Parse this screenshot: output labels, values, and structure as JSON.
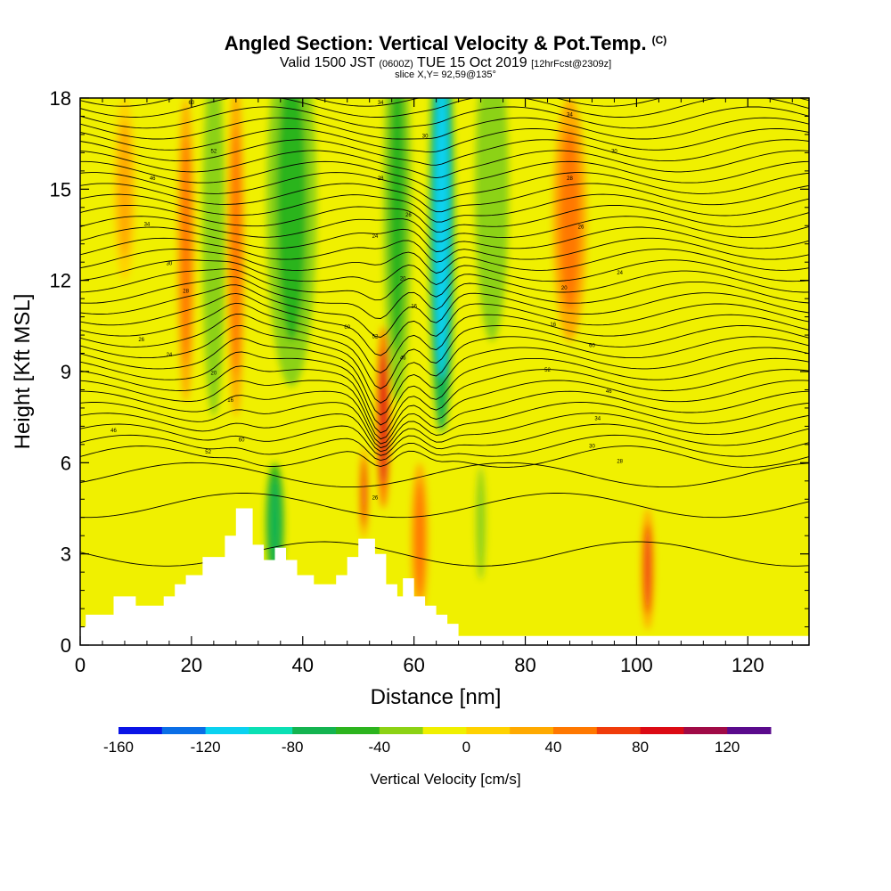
{
  "title": {
    "main": "Angled Section: Vertical Velocity & Pot.Temp.",
    "main_tag": "(C)",
    "valid_prefix": "Valid 1500 JST",
    "valid_utc": "(0600Z)",
    "valid_date": "TUE 15 Oct 2019",
    "forecast": "[12hrFcst@2309z]",
    "slice": "slice X,Y= 92,59@135°"
  },
  "chart_data": {
    "type": "heatmap",
    "xlabel": "Distance [nm]",
    "ylabel": "Height [Kft MSL]",
    "xlim": [
      0,
      131
    ],
    "ylim": [
      0,
      18
    ],
    "xticks": [
      "0",
      "20",
      "40",
      "60",
      "80",
      "100",
      "120"
    ],
    "xtick_values": [
      0,
      20,
      40,
      60,
      80,
      100,
      120
    ],
    "yticks": [
      "0",
      "3",
      "6",
      "9",
      "12",
      "15",
      "18"
    ],
    "ytick_values": [
      0,
      3,
      6,
      9,
      12,
      15,
      18
    ],
    "colorbar": {
      "label": "Vertical Velocity [cm/s]",
      "tick_labels": [
        "-160",
        "-120",
        "-80",
        "-40",
        "0",
        "40",
        "80",
        "120"
      ],
      "tick_values": [
        -160,
        -120,
        -80,
        -40,
        0,
        40,
        80,
        120
      ],
      "range": [
        -160,
        140
      ],
      "interval": 20,
      "colors": [
        "#0a14e6",
        "#0a6ee6",
        "#0ad2f0",
        "#0ae0b4",
        "#14b450",
        "#2cb41e",
        "#8cd214",
        "#f0f000",
        "#ffd200",
        "#ffaa00",
        "#ff7800",
        "#f03c0a",
        "#dc0a14",
        "#a00a46",
        "#5a0a8c"
      ]
    },
    "background_color": "#f0f000",
    "terrain_color": "#ffffff",
    "contour_color": "#000000",
    "terrain_profile": {
      "x": [
        0,
        1,
        1,
        6,
        6,
        10,
        10,
        15,
        15,
        17,
        17,
        19,
        19,
        22,
        22,
        26,
        26,
        28,
        28,
        31,
        31,
        33,
        33,
        35,
        35,
        37,
        37,
        39,
        39,
        42,
        42,
        46,
        46,
        48,
        48,
        50,
        50,
        53,
        53,
        55,
        55,
        57,
        57,
        58,
        58,
        60,
        60,
        62,
        62,
        64,
        64,
        66,
        66,
        68,
        68,
        70,
        70,
        72,
        72,
        131
      ],
      "height": [
        0.6,
        0.6,
        1.0,
        1.0,
        1.6,
        1.6,
        1.3,
        1.3,
        1.6,
        1.6,
        2.0,
        2.0,
        2.3,
        2.3,
        2.9,
        2.9,
        3.6,
        3.6,
        4.5,
        4.5,
        3.3,
        3.3,
        2.8,
        2.8,
        3.2,
        3.2,
        2.8,
        2.8,
        2.3,
        2.3,
        2.0,
        2.0,
        2.3,
        2.3,
        2.9,
        2.9,
        3.5,
        3.5,
        3.0,
        3.0,
        2.0,
        2.0,
        1.6,
        1.6,
        2.2,
        2.2,
        1.6,
        1.6,
        1.3,
        1.3,
        1.0,
        1.0,
        0.7,
        0.7,
        0.3,
        0.3,
        0.3,
        0.3,
        0.3,
        0.3
      ]
    },
    "velocity_features": [
      {
        "x": 65,
        "y": 14.0,
        "rx": 2.2,
        "ry": 7.0,
        "value": -120
      },
      {
        "x": 38,
        "y": 14.5,
        "rx": 4.5,
        "ry": 6.0,
        "value": -50
      },
      {
        "x": 24,
        "y": 13.5,
        "rx": 2.0,
        "ry": 6.0,
        "value": -40
      },
      {
        "x": 57,
        "y": 14.5,
        "rx": 2.5,
        "ry": 6.5,
        "value": -45
      },
      {
        "x": 74,
        "y": 15.0,
        "rx": 3.0,
        "ry": 5.0,
        "value": -40
      },
      {
        "x": 35,
        "y": 4.0,
        "rx": 1.6,
        "ry": 2.0,
        "value": -70
      },
      {
        "x": 72,
        "y": 4.0,
        "rx": 1.5,
        "ry": 2.5,
        "value": -30
      },
      {
        "x": 54.5,
        "y": 7.5,
        "rx": 1.2,
        "ry": 3.0,
        "value": 90
      },
      {
        "x": 51,
        "y": 5.0,
        "rx": 0.8,
        "ry": 1.5,
        "value": 60
      },
      {
        "x": 88,
        "y": 14.0,
        "rx": 3.0,
        "ry": 4.0,
        "value": 55
      },
      {
        "x": 19,
        "y": 13.0,
        "rx": 1.5,
        "ry": 5.0,
        "value": 45
      },
      {
        "x": 28,
        "y": 13.0,
        "rx": 1.5,
        "ry": 5.5,
        "value": 50
      },
      {
        "x": 61,
        "y": 3.5,
        "rx": 1.5,
        "ry": 2.5,
        "value": 50
      },
      {
        "x": 102,
        "y": 2.5,
        "rx": 1.2,
        "ry": 2.0,
        "value": 60
      },
      {
        "x": 8,
        "y": 15.0,
        "rx": 2.0,
        "ry": 3.0,
        "value": 25
      }
    ],
    "contour_labels": [
      "60",
      "52",
      "46",
      "34",
      "30",
      "28",
      "26",
      "24",
      "20",
      "16"
    ]
  }
}
